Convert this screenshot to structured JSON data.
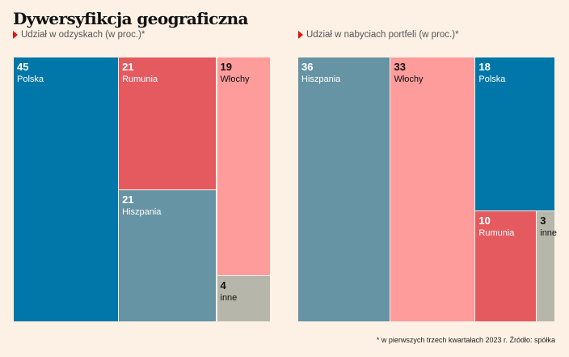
{
  "title": "Dywersyfikcja geograficzna",
  "footnote": "* w pierwszych trzech kwartałach 2023 r. Źródło: spółka",
  "colors": {
    "Polska": "#0077a8",
    "Rumunia": "#e45a5f",
    "Włochy": "#fe9b9b",
    "Hiszpania": "#6694a4",
    "inne": "#b7b6ab",
    "accent": "#e3120b",
    "background": "#fdf1e5"
  },
  "chart_data": [
    {
      "type": "treemap",
      "title": "Udział w odzyskach (w proc.)*",
      "categories": [
        "Polska",
        "Rumunia",
        "Hiszpania",
        "Włochy",
        "inne"
      ],
      "values": [
        45,
        21,
        21,
        19,
        4
      ],
      "unit": "%"
    },
    {
      "type": "treemap",
      "title": "Udział w nabyciach portfeli (w proc.)*",
      "categories": [
        "Hiszpania",
        "Włochy",
        "Polska",
        "Rumunia",
        "inne"
      ],
      "values": [
        36,
        33,
        18,
        10,
        3
      ],
      "unit": "%"
    }
  ]
}
